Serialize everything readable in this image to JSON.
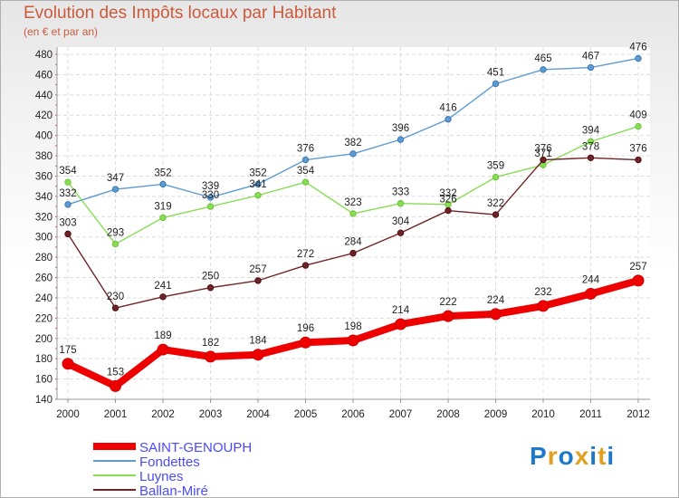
{
  "title": "Evolution des Impôts locaux par Habitant",
  "subtitle": "(en € et par an)",
  "logo": {
    "text": "Proxiti",
    "letter_colors": [
      "#1e78c8",
      "#e0a020",
      "#1e78c8",
      "#e0a020",
      "#1e78c8",
      "#e0a020",
      "#1e78c8"
    ]
  },
  "chart_data": {
    "type": "line",
    "x": [
      2000,
      2001,
      2002,
      2003,
      2004,
      2005,
      2006,
      2007,
      2008,
      2009,
      2010,
      2011,
      2012
    ],
    "ylim": [
      140,
      480
    ],
    "yticks": [
      140,
      160,
      180,
      200,
      220,
      240,
      260,
      280,
      300,
      320,
      340,
      360,
      380,
      400,
      420,
      440,
      460,
      480
    ],
    "grid": true,
    "legend_position": "bottom-left",
    "series": [
      {
        "name": "SAINT-GENOUPH",
        "color": "#ee0000",
        "values": [
          175,
          153,
          189,
          182,
          184,
          196,
          198,
          214,
          222,
          224,
          232,
          244,
          257
        ]
      },
      {
        "name": "Fondettes",
        "color": "#5e9bd0",
        "values": [
          332,
          347,
          352,
          339,
          352,
          376,
          382,
          396,
          416,
          451,
          465,
          467,
          476
        ]
      },
      {
        "name": "Luynes",
        "color": "#88dd55",
        "values": [
          354,
          293,
          319,
          330,
          341,
          354,
          323,
          333,
          332,
          359,
          371,
          394,
          409
        ]
      },
      {
        "name": "Ballan-Miré",
        "color": "#702428",
        "values": [
          303,
          230,
          241,
          250,
          257,
          272,
          284,
          304,
          326,
          322,
          376,
          378,
          376
        ]
      }
    ]
  }
}
